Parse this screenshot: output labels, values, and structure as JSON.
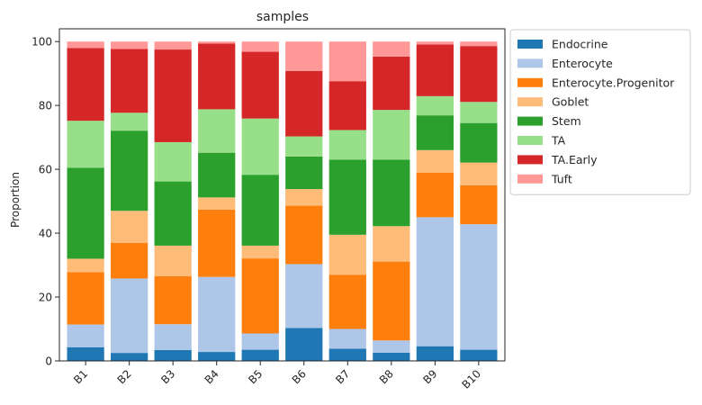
{
  "chart_data": {
    "type": "bar",
    "stacked": true,
    "title": "samples",
    "xlabel": "",
    "ylabel": "Proportion",
    "ylim": [
      0,
      104
    ],
    "yticks": [
      0,
      20,
      40,
      60,
      80,
      100
    ],
    "categories": [
      "B1",
      "B2",
      "B3",
      "B4",
      "B5",
      "B6",
      "B7",
      "B8",
      "B9",
      "B10"
    ],
    "legend_position": "outside-right",
    "grid": false,
    "series": [
      {
        "name": "Endocrine",
        "color": "#1f77b4",
        "values": [
          4.3,
          2.5,
          3.4,
          2.8,
          3.5,
          10.3,
          3.8,
          2.6,
          4.6,
          3.5
        ]
      },
      {
        "name": "Enterocyte",
        "color": "#aec7e8",
        "values": [
          7.1,
          23.3,
          8.1,
          23.5,
          5.1,
          20.0,
          6.2,
          3.8,
          40.4,
          39.3
        ]
      },
      {
        "name": "Enterocyte.Progenitor",
        "color": "#ff7f0e",
        "values": [
          16.4,
          11.2,
          15.0,
          21.1,
          23.5,
          18.3,
          17.0,
          24.7,
          13.9,
          12.2
        ]
      },
      {
        "name": "Goblet",
        "color": "#ffbb78",
        "values": [
          4.2,
          10.0,
          9.6,
          3.8,
          4.0,
          5.2,
          12.5,
          11.1,
          7.1,
          7.1
        ]
      },
      {
        "name": "Stem",
        "color": "#2ca02c",
        "values": [
          28.5,
          25.1,
          20.1,
          14.0,
          22.2,
          10.2,
          23.5,
          20.8,
          10.9,
          12.4
        ]
      },
      {
        "name": "TA",
        "color": "#98df8a",
        "values": [
          14.7,
          5.6,
          12.3,
          13.6,
          17.6,
          6.3,
          9.3,
          15.6,
          6.0,
          6.6
        ]
      },
      {
        "name": "TA.Early",
        "color": "#d62728",
        "values": [
          22.8,
          20.0,
          29.0,
          20.6,
          20.9,
          20.5,
          15.3,
          16.7,
          16.2,
          17.5
        ]
      },
      {
        "name": "Tuft",
        "color": "#ff9896",
        "values": [
          2.0,
          2.3,
          2.5,
          0.6,
          3.2,
          9.2,
          12.4,
          4.7,
          0.9,
          1.4
        ]
      }
    ]
  }
}
